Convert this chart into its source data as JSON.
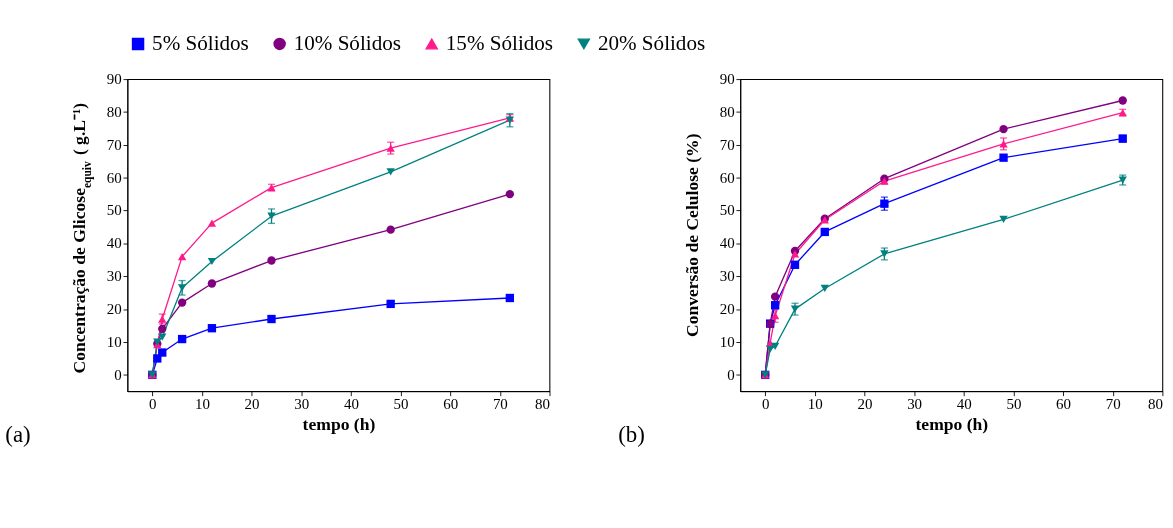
{
  "chart_data": [
    {
      "type": "line",
      "xlabel": "tempo (h)",
      "ylabel": "Concentração de Glicose$_{equiv}$ ( g.L⁻¹)",
      "annotations": [
        "(a)"
      ],
      "legend": "top",
      "xlim": [
        -5,
        80
      ],
      "ylim": [
        -5,
        90
      ],
      "xticks": [
        0,
        10,
        20,
        30,
        40,
        50,
        60,
        70,
        80
      ],
      "yticks": [
        0,
        10,
        20,
        30,
        40,
        50,
        60,
        70,
        80,
        90
      ],
      "grid": false,
      "x": [
        0,
        1,
        2,
        6,
        12,
        24,
        48,
        72
      ],
      "series": [
        {
          "name": "5% Sólidos",
          "color": "#0000ff",
          "marker": "square",
          "values": [
            0,
            5,
            6.8,
            10.9,
            14.2,
            17,
            21.6,
            23.4
          ]
        },
        {
          "name": "10% Sólidos",
          "color": "#800080",
          "marker": "circle",
          "values": [
            0,
            9.5,
            14,
            22,
            27.8,
            34.8,
            44.2,
            55
          ]
        },
        {
          "name": "15% Sólidos",
          "color": "#ff1a8c",
          "marker": "triangle",
          "values": [
            0,
            9.2,
            17,
            36,
            46.2,
            57,
            69,
            78.2
          ],
          "errors": [
            null,
            null,
            1.5,
            null,
            null,
            1,
            1.8,
            1
          ]
        },
        {
          "name": "20% Sólidos",
          "color": "#008080",
          "marker": "triangle-down",
          "values": [
            0,
            10,
            11.5,
            26.5,
            34.5,
            48.3,
            61.8,
            77.5
          ],
          "errors": [
            null,
            null,
            null,
            2.2,
            null,
            2.2,
            null,
            2
          ]
        }
      ]
    },
    {
      "type": "line",
      "xlabel": "tempo (h)",
      "ylabel": "Conversão de Celulose (%)",
      "annotations": [
        "(b)"
      ],
      "legend": "top",
      "xlim": [
        -5,
        80
      ],
      "ylim": [
        -5,
        90
      ],
      "xticks": [
        0,
        10,
        20,
        30,
        40,
        50,
        60,
        70,
        80
      ],
      "yticks": [
        0,
        10,
        20,
        30,
        40,
        50,
        60,
        70,
        80,
        90
      ],
      "grid": false,
      "x": [
        0,
        1,
        2,
        6,
        12,
        24,
        48,
        72
      ],
      "series": [
        {
          "name": "5% Sólidos",
          "color": "#0000ff",
          "marker": "square",
          "values": [
            0,
            15.6,
            21.2,
            33.5,
            43.5,
            52.1,
            66.1,
            71.9
          ],
          "errors": [
            null,
            null,
            null,
            null,
            null,
            2,
            0.8,
            1
          ]
        },
        {
          "name": "10% Sólidos",
          "color": "#800080",
          "marker": "circle",
          "values": [
            0,
            15.5,
            23.8,
            37.7,
            47.5,
            59.7,
            74.8,
            83.5
          ]
        },
        {
          "name": "15% Sólidos",
          "color": "#ff1a8c",
          "marker": "triangle",
          "values": [
            0,
            9.7,
            18,
            36.8,
            47.2,
            59,
            70.3,
            79.8
          ],
          "errors": [
            null,
            null,
            2,
            null,
            null,
            1,
            1.8,
            1
          ]
        },
        {
          "name": "20% Sólidos",
          "color": "#008080",
          "marker": "triangle-down",
          "values": [
            0,
            7.8,
            8.7,
            20,
            26.3,
            36.8,
            47.3,
            59.3
          ],
          "errors": [
            null,
            null,
            null,
            1.8,
            null,
            1.8,
            null,
            1.5
          ]
        }
      ]
    }
  ]
}
